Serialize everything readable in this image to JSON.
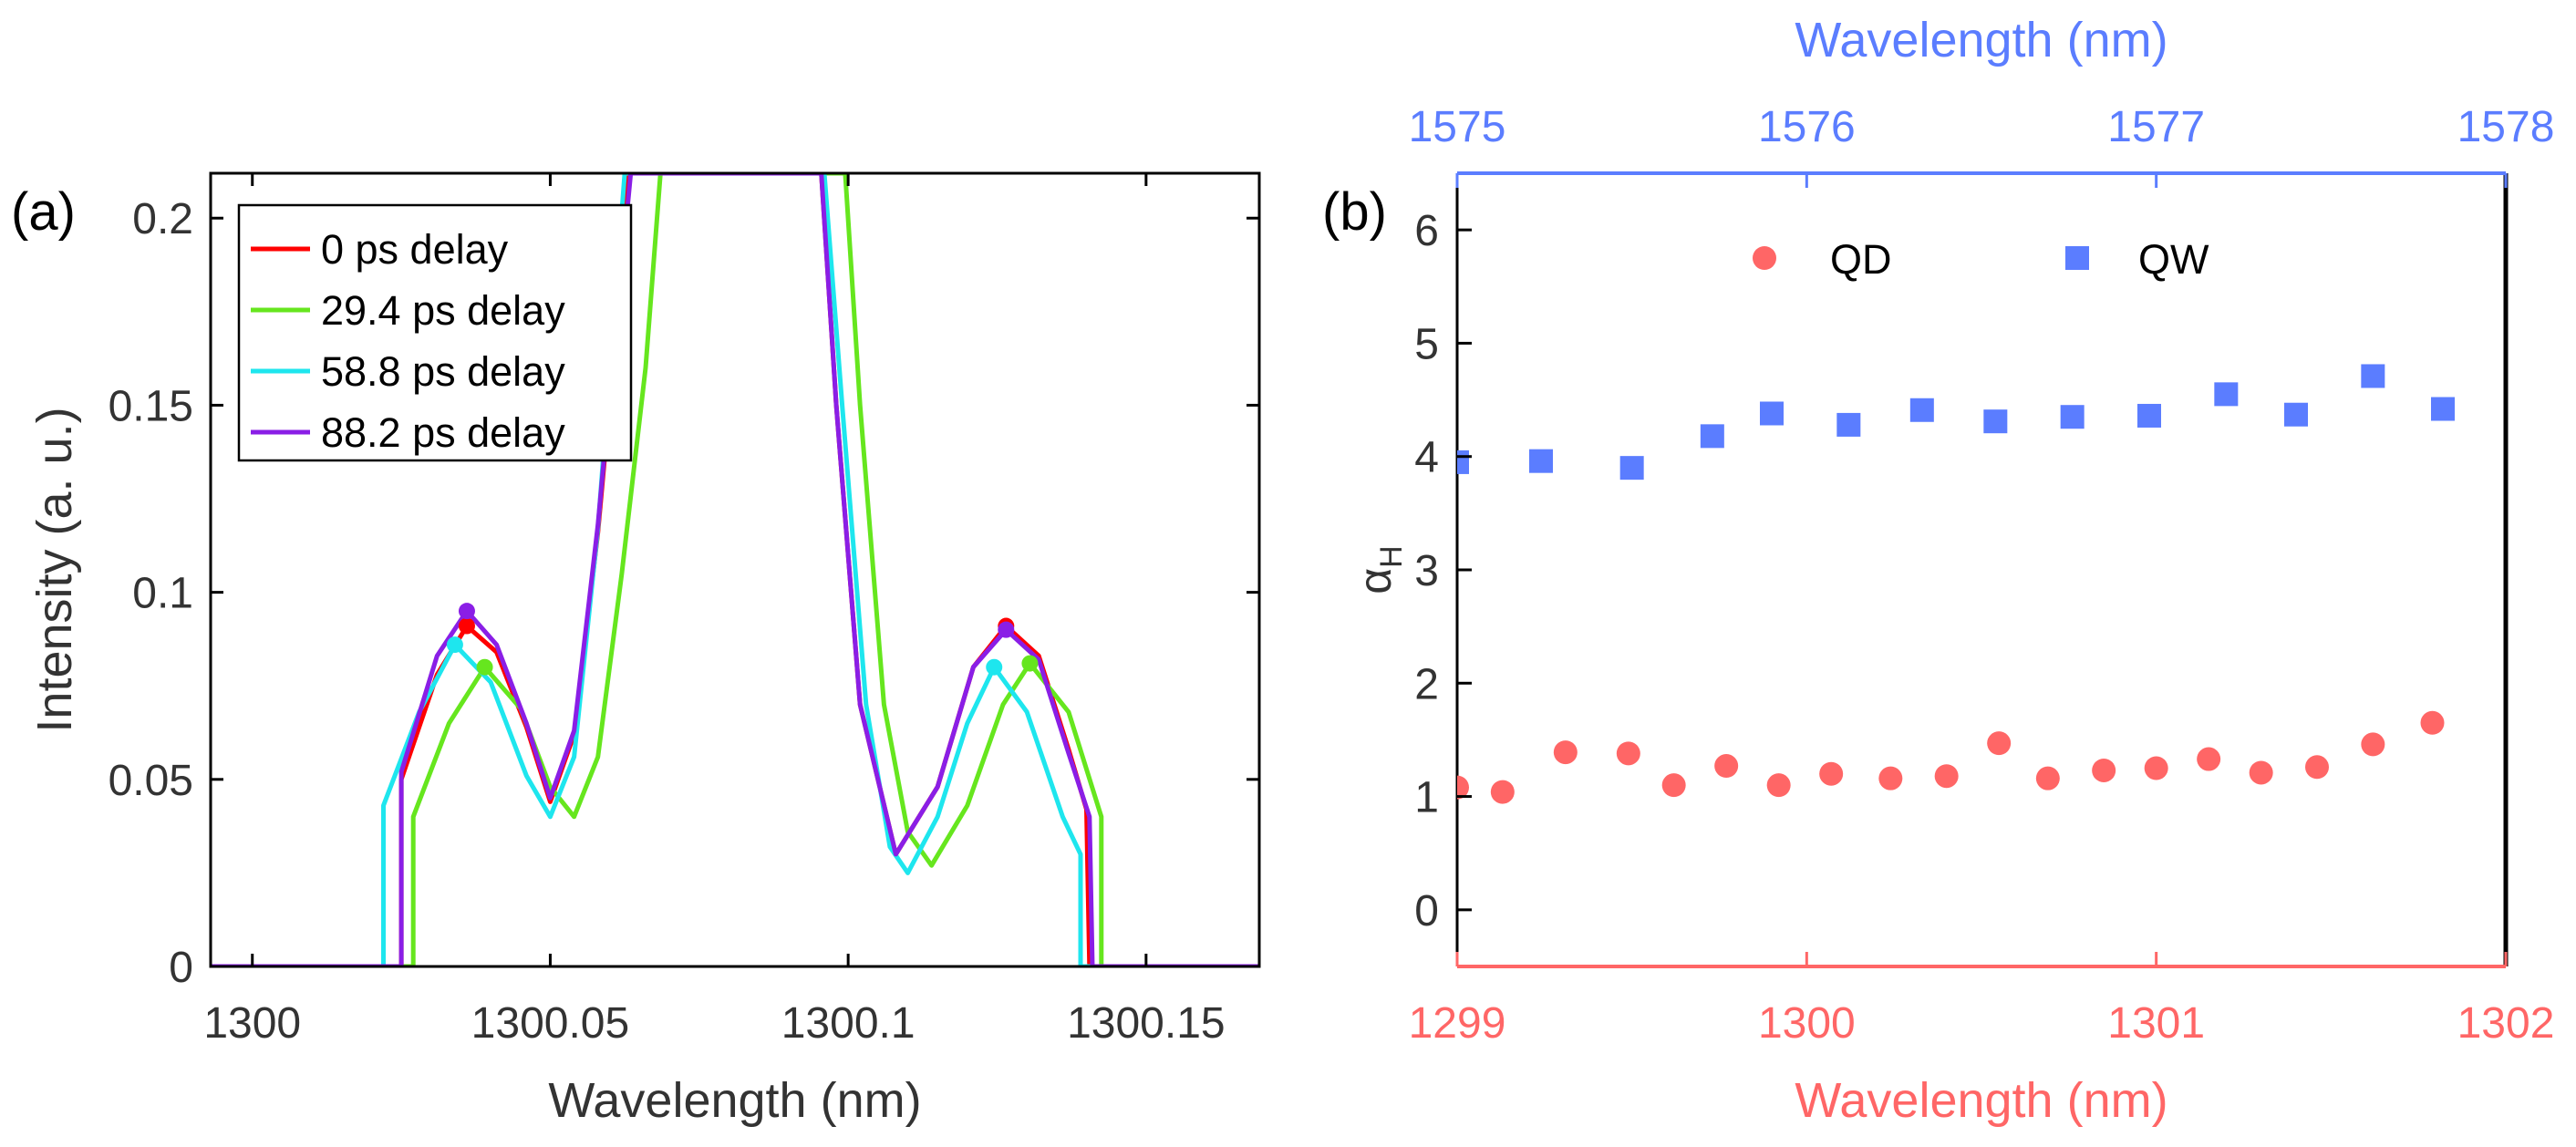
{
  "chart_data": [
    {
      "panel_label": "(a)",
      "type": "line",
      "title": "",
      "xlabel": "Wavelength (nm)",
      "ylabel": "Intensity (a. u.)",
      "xlim": [
        1299.993,
        1300.169
      ],
      "ylim": [
        0,
        0.212
      ],
      "xticks": [
        1300,
        1300.05,
        1300.1,
        1300.15
      ],
      "xtick_labels": [
        "1300",
        "1300.05",
        "1300.1",
        "1300.15"
      ],
      "yticks": [
        0,
        0.05,
        0.1,
        0.15,
        0.2
      ],
      "ytick_labels": [
        "0",
        "0.05",
        "0.1",
        "0.15",
        "0.2"
      ],
      "grid": false,
      "legend_position": "top-left",
      "series": [
        {
          "name": "0 ps delay",
          "color": "#ff0000",
          "points": [
            [
              1299.993,
              0
            ],
            [
              1300.025,
              0
            ],
            [
              1300.025,
              0.05
            ],
            [
              1300.031,
              0.078
            ],
            [
              1300.036,
              0.091
            ],
            [
              1300.041,
              0.084
            ],
            [
              1300.046,
              0.064
            ],
            [
              1300.05,
              0.044
            ],
            [
              1300.054,
              0.062
            ],
            [
              1300.058,
              0.116
            ],
            [
              1300.0605,
              0.16
            ],
            [
              1300.063,
              0.212
            ],
            [
              1300.0955,
              0.212
            ],
            [
              1300.098,
              0.15
            ],
            [
              1300.102,
              0.07
            ],
            [
              1300.108,
              0.03
            ],
            [
              1300.115,
              0.048
            ],
            [
              1300.121,
              0.08
            ],
            [
              1300.1265,
              0.091
            ],
            [
              1300.132,
              0.083
            ],
            [
              1300.137,
              0.058
            ],
            [
              1300.14,
              0.042
            ],
            [
              1300.1405,
              0
            ],
            [
              1300.169,
              0
            ]
          ],
          "markers": [
            [
              1300.036,
              0.091
            ],
            [
              1300.1265,
              0.091
            ]
          ]
        },
        {
          "name": "29.4 ps delay",
          "color": "#66e61e",
          "points": [
            [
              1299.993,
              0
            ],
            [
              1300.027,
              0
            ],
            [
              1300.027,
              0.04
            ],
            [
              1300.033,
              0.065
            ],
            [
              1300.039,
              0.08
            ],
            [
              1300.045,
              0.069
            ],
            [
              1300.05,
              0.048
            ],
            [
              1300.054,
              0.04
            ],
            [
              1300.058,
              0.056
            ],
            [
              1300.062,
              0.105
            ],
            [
              1300.066,
              0.16
            ],
            [
              1300.0685,
              0.212
            ],
            [
              1300.0995,
              0.212
            ],
            [
              1300.102,
              0.15
            ],
            [
              1300.106,
              0.07
            ],
            [
              1300.11,
              0.036
            ],
            [
              1300.114,
              0.027
            ],
            [
              1300.12,
              0.043
            ],
            [
              1300.126,
              0.07
            ],
            [
              1300.1305,
              0.081
            ],
            [
              1300.137,
              0.068
            ],
            [
              1300.1425,
              0.04
            ],
            [
              1300.1425,
              0
            ],
            [
              1300.169,
              0
            ]
          ],
          "markers": [
            [
              1300.039,
              0.08
            ],
            [
              1300.1305,
              0.081
            ]
          ]
        },
        {
          "name": "58.8 ps delay",
          "color": "#1ee6ee",
          "points": [
            [
              1299.993,
              0
            ],
            [
              1300.022,
              0
            ],
            [
              1300.022,
              0.043
            ],
            [
              1300.028,
              0.068
            ],
            [
              1300.034,
              0.086
            ],
            [
              1300.04,
              0.076
            ],
            [
              1300.046,
              0.051
            ],
            [
              1300.05,
              0.04
            ],
            [
              1300.054,
              0.056
            ],
            [
              1300.058,
              0.117
            ],
            [
              1300.0605,
              0.17
            ],
            [
              1300.0625,
              0.212
            ],
            [
              1300.096,
              0.212
            ],
            [
              1300.099,
              0.15
            ],
            [
              1300.103,
              0.07
            ],
            [
              1300.107,
              0.032
            ],
            [
              1300.11,
              0.025
            ],
            [
              1300.115,
              0.04
            ],
            [
              1300.12,
              0.065
            ],
            [
              1300.1245,
              0.08
            ],
            [
              1300.13,
              0.068
            ],
            [
              1300.136,
              0.04
            ],
            [
              1300.139,
              0.03
            ],
            [
              1300.139,
              0
            ],
            [
              1300.169,
              0
            ]
          ],
          "markers": [
            [
              1300.034,
              0.086
            ],
            [
              1300.1245,
              0.08
            ]
          ]
        },
        {
          "name": "88.2 ps delay",
          "color": "#8a1ee6",
          "points": [
            [
              1299.993,
              0
            ],
            [
              1300.025,
              0
            ],
            [
              1300.025,
              0.052
            ],
            [
              1300.031,
              0.083
            ],
            [
              1300.036,
              0.095
            ],
            [
              1300.041,
              0.086
            ],
            [
              1300.046,
              0.065
            ],
            [
              1300.05,
              0.045
            ],
            [
              1300.054,
              0.063
            ],
            [
              1300.058,
              0.118
            ],
            [
              1300.061,
              0.17
            ],
            [
              1300.0635,
              0.212
            ],
            [
              1300.0955,
              0.212
            ],
            [
              1300.098,
              0.15
            ],
            [
              1300.102,
              0.07
            ],
            [
              1300.108,
              0.03
            ],
            [
              1300.115,
              0.048
            ],
            [
              1300.121,
              0.08
            ],
            [
              1300.1265,
              0.09
            ],
            [
              1300.132,
              0.082
            ],
            [
              1300.137,
              0.057
            ],
            [
              1300.1405,
              0.04
            ],
            [
              1300.141,
              0
            ],
            [
              1300.169,
              0
            ]
          ],
          "markers": [
            [
              1300.036,
              0.095
            ],
            [
              1300.1265,
              0.09
            ]
          ]
        }
      ]
    },
    {
      "panel_label": "(b)",
      "type": "scatter",
      "title": "",
      "xlabel": "Wavelength (nm)",
      "xlabel_color": "#ff6666",
      "xlim": [
        1299,
        1302
      ],
      "xticks": [
        1299,
        1300,
        1301,
        1302
      ],
      "xtick_labels": [
        "1299",
        "1300",
        "1301",
        "1302"
      ],
      "x2label": "Wavelength (nm)",
      "x2label_color": "#5b7dff",
      "x2lim": [
        1575,
        1578
      ],
      "x2ticks": [
        1575,
        1576,
        1577,
        1578
      ],
      "x2tick_labels": [
        "1575",
        "1576",
        "1577",
        "1578"
      ],
      "ylabel": "α",
      "ylabel_subscript": "H",
      "ylim": [
        -0.5,
        6.5
      ],
      "yticks": [
        0,
        1,
        2,
        3,
        4,
        5,
        6
      ],
      "ytick_labels": [
        "0",
        "1",
        "2",
        "3",
        "4",
        "5",
        "6"
      ],
      "grid": false,
      "legend_position": "top",
      "series": [
        {
          "name": "QD",
          "axis": "bottom",
          "marker": "circle",
          "color": "#ff6666",
          "x": [
            1299.0,
            1299.13,
            1299.31,
            1299.49,
            1299.62,
            1299.77,
            1299.92,
            1300.07,
            1300.24,
            1300.4,
            1300.55,
            1300.69,
            1300.85,
            1301.0,
            1301.15,
            1301.3,
            1301.46,
            1301.62,
            1301.79
          ],
          "y": [
            1.08,
            1.04,
            1.39,
            1.38,
            1.1,
            1.27,
            1.1,
            1.2,
            1.16,
            1.18,
            1.47,
            1.16,
            1.23,
            1.25,
            1.33,
            1.21,
            1.26,
            1.46,
            1.65
          ]
        },
        {
          "name": "QW",
          "axis": "top",
          "marker": "square",
          "color": "#5b7dff",
          "x": [
            1575.0,
            1575.24,
            1575.5,
            1575.73,
            1575.9,
            1576.12,
            1576.33,
            1576.54,
            1576.76,
            1576.98,
            1577.2,
            1577.4,
            1577.62,
            1577.82
          ],
          "y": [
            3.95,
            3.96,
            3.9,
            4.18,
            4.38,
            4.28,
            4.41,
            4.31,
            4.35,
            4.36,
            4.55,
            4.37,
            4.71,
            4.42
          ]
        }
      ]
    }
  ]
}
